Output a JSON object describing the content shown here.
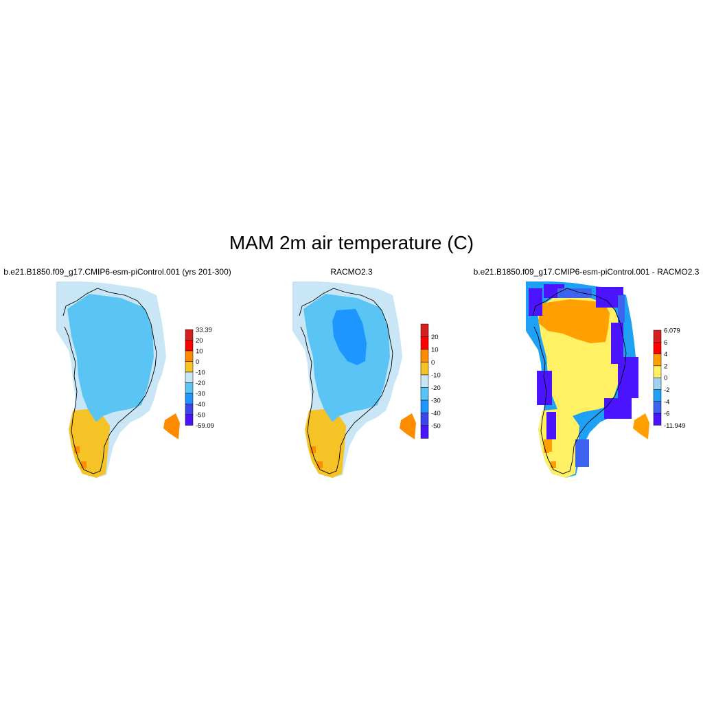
{
  "title": "MAM 2m air temperature (C)",
  "chart_data": [
    {
      "type": "heatmap",
      "title": "b.e21.B1850.f09_g17.CMIP6-esm-piControl.001 (yrs 201-300)",
      "region": "Greenland",
      "colorbar": {
        "labels": [
          "33.39",
          "20",
          "10",
          "0",
          "-10",
          "-20",
          "-30",
          "-40",
          "-50",
          "-59.09"
        ],
        "colors": [
          "#d62020",
          "#ff0000",
          "#ff8c00",
          "#f5c325",
          "#c8e6f5",
          "#5ac5f5",
          "#1e96ff",
          "#3c46eb",
          "#4b14ff"
        ],
        "min": -59.09,
        "max": 33.39
      },
      "zones": [
        {
          "range": "-30 to -20",
          "color": "#5ac5f5"
        },
        {
          "range": "-20 to -10",
          "color": "#c8e6f5"
        },
        {
          "range": "-10 to 0",
          "color": "#f5c325"
        },
        {
          "range": "0 to 10",
          "color": "#ff8c00"
        }
      ]
    },
    {
      "type": "heatmap",
      "title": "RACMO2.3",
      "region": "Greenland",
      "colorbar": {
        "labels": [
          "20",
          "10",
          "0",
          "-10",
          "-20",
          "-30",
          "-40",
          "-50"
        ],
        "colors": [
          "#d62020",
          "#ff0000",
          "#ff8c00",
          "#f5c325",
          "#c8e6f5",
          "#5ac5f5",
          "#1e96ff",
          "#3c46eb",
          "#4b14ff"
        ]
      },
      "zones": [
        {
          "range": "-40 to -30",
          "color": "#1e96ff"
        },
        {
          "range": "-30 to -20",
          "color": "#5ac5f5"
        },
        {
          "range": "-20 to -10",
          "color": "#c8e6f5"
        },
        {
          "range": "-10 to 0",
          "color": "#f5c325"
        },
        {
          "range": "0 to 10",
          "color": "#ff8c00"
        }
      ]
    },
    {
      "type": "heatmap",
      "title": "b.e21.B1850.f09_g17.CMIP6-esm-piControl.001 - RACMO2.3",
      "region": "Greenland",
      "colorbar": {
        "labels": [
          "6.079",
          "6",
          "4",
          "2",
          "0",
          "-2",
          "-4",
          "-6",
          "-11.949"
        ],
        "colors": [
          "#d62020",
          "#ff0000",
          "#ffa000",
          "#fff064",
          "#a0d2f0",
          "#1ea0f5",
          "#3c64f0",
          "#4b14ff"
        ],
        "min": -11.949,
        "max": 6.079
      },
      "zones": [
        {
          "range": "2 to 4",
          "color": "#ffa000"
        },
        {
          "range": "0 to 2",
          "color": "#fff064"
        },
        {
          "range": "-2 to 0",
          "color": "#a0d2f0"
        },
        {
          "range": "-4 to -2",
          "color": "#1ea0f5"
        },
        {
          "range": "-6 to -4",
          "color": "#3c64f0"
        },
        {
          "range": "-11.949 to -6",
          "color": "#4b14ff"
        }
      ]
    }
  ]
}
